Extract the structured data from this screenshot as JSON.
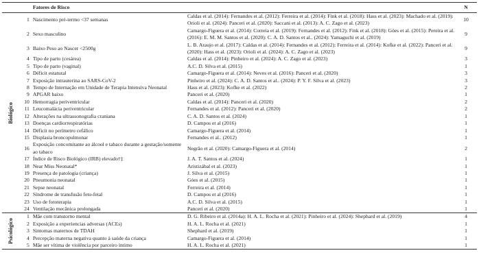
{
  "header": {
    "category": "",
    "num": "",
    "factor": "Fatores de Risco",
    "refs": "",
    "count": "N"
  },
  "groups": [
    {
      "label": "Biológico",
      "rows": [
        {
          "n": "1",
          "factor": "Nascimento pré-termo <37 semanas",
          "refs": "Caldas et al. (2014): Fernandes et al. (2012): Ferreira et al. (2014): Fink et al. (2018): Hass et al. (2023): Machado et al. (2019): Orioli et al. (2024): Panceri et al. (2020): Saccani et al. (2013): A. C. Zago et al. (2023)",
          "count": "10"
        },
        {
          "n": "2",
          "factor": "Sexo masculino",
          "refs": "Camargo-Figuera et al. (2014): Correia et al. (2019): Fernandes et al. (2012): Fink et al. (2018): Góes et al. (2015): Pereira et al. (2016): E. M. M. Santos et al. (2020): C. A. D. Santos et al.. (2024): Yamaguchi et al. (2019)",
          "count": "9"
        },
        {
          "n": "3",
          "factor": "Baixo Peso ao Nascer <2500g",
          "refs": "L. B. Araujo et al. (2017): Caldas et al. (2014): Fernandes et al. (2012): Ferreira et al. (2014): Kofke et al. (2022): Panceri et al. (2020): Hass et al. (2023): Orioli et al. (2024): A. C. Zago et al. (2023)",
          "count": "9"
        },
        {
          "n": "4",
          "factor": "Tipo de parto (cesárea)",
          "refs": "Caldas et al. (2014): Pinheiro et al. (2024): A. C. Zago et al. (2023)",
          "count": "3"
        },
        {
          "n": "5",
          "factor": "Tipo de parto (vaginal)",
          "refs": "A.C. D. Silva et al. (2015)",
          "count": "1"
        },
        {
          "n": "6",
          "factor": "Déficit estatural",
          "refs": "Camargo-Figuera et al. (2014): Neves et al. (2016): Panceri et al. (2020)",
          "count": "3"
        },
        {
          "n": "7",
          "factor": "Exposição intrauterina ao SARS-CoV-2",
          "refs": "Pinheiro et al. (2024): C. A. D. Santos et al.. (2024): P. Y. F. Silva et al. (2023)",
          "count": "3"
        },
        {
          "n": "8",
          "factor": "Tempo de Internação em Unidade de Terapia Intensiva Neonatal",
          "refs": "Hass et al. (2023): Kofke et al. (2022)",
          "count": "2"
        },
        {
          "n": "9",
          "factor": "APGAR baixo",
          "refs": "Panceri et al. (2020)",
          "count": "1"
        },
        {
          "n": "10",
          "factor": "Hemorragia periventricular",
          "refs": "Caldas et al. (2014): Panceri et al. (2020)",
          "count": "2"
        },
        {
          "n": "11",
          "factor": "Leucomalácia periventricular",
          "refs": "Fernandes et al. (2012): Panceri et al. (2020)",
          "count": "2"
        },
        {
          "n": "12",
          "factor": "Alterações na ultrassonografia craniana",
          "refs": "C. A. D. Santos et al. (2024)",
          "count": "1"
        },
        {
          "n": "13",
          "factor": "Doenças cardiorrespiratórias",
          "refs": "D. Campos et al (2016)",
          "count": "1"
        },
        {
          "n": "14",
          "factor": "Déficit no perímetro cefálico",
          "refs": "Camargo-Figuera et al. (2014)",
          "count": "1"
        },
        {
          "n": "15",
          "factor": "Displasia broncopulmonar",
          "refs": "Fernandes et al.. (2012)",
          "count": "1"
        },
        {
          "n": "16",
          "factor": "Exposição concomitante ao álcool e tabaco durante a gestação/somente ao tabaco",
          "refs": "Negrão et al. (2020): Camargo-Figuera et al. (2014)",
          "count": "2"
        },
        {
          "n": "17",
          "factor": "Índice de Risco Biológico (IRB) elevado†‡",
          "refs": "J. A. T. Santos et al. (2024)",
          "count": "1"
        },
        {
          "n": "18",
          "factor": "Near Miss Neonatal*",
          "refs": "Aristizábal et al. (2023)",
          "count": "1"
        },
        {
          "n": "19",
          "factor": "Presença de patologia (criança)",
          "refs": "J. Silva et al. (2015)",
          "count": "1"
        },
        {
          "n": "20",
          "factor": "Pneumonia neonatal",
          "refs": "Góes et al. (2015)",
          "count": "1"
        },
        {
          "n": "21",
          "factor": "Sepse neonatal",
          "refs": "Ferreira et al. (2014)",
          "count": "1"
        },
        {
          "n": "22",
          "factor": "Síndrome de transfusão feto-fetal",
          "refs": "D. Campos et al (2016)",
          "count": "1"
        },
        {
          "n": "23",
          "factor": "Uso de fototerapia",
          "refs": "A.C. D. Silva et al. (2015)",
          "count": "1"
        },
        {
          "n": "24",
          "factor": "Ventilação mecânica prolongada",
          "refs": "Panceri et al. (2020)",
          "count": "1"
        }
      ]
    },
    {
      "label": "Psicológico",
      "rows": [
        {
          "n": "1",
          "factor": "Mãe com transtorno mental",
          "refs": "D. G. Ribeiro et al. (2014a): H. A. L. Rocha et al. (2021): Pinheiro et al. (2024): Shephard et al. (2019)",
          "count": "4"
        },
        {
          "n": "2",
          "factor": "Exposição a experiencias adversas (ACEs)",
          "refs": "H. A. L. Rocha et al. (2021)",
          "count": "1"
        },
        {
          "n": "3",
          "factor": "Sintomas maternos de TDAH",
          "refs": "Shephard et al. (2019)",
          "count": "1"
        },
        {
          "n": "4",
          "factor": "Percepção materna negativa quanto à saúde da criança",
          "refs": "Camargo-Figuera et al. (2014)",
          "count": "1"
        },
        {
          "n": "5",
          "factor": "Mãe ser vítima de violência por parceiro íntimo",
          "refs": "H. A. L. Rocha et al. (2021)",
          "count": "1"
        }
      ]
    }
  ]
}
